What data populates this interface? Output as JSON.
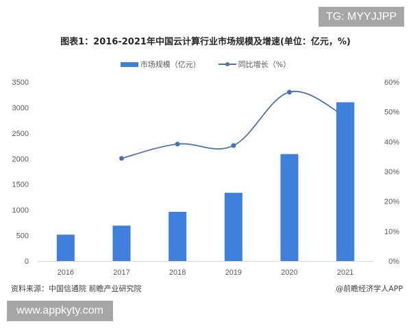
{
  "badges": {
    "top_right": "TG: MYYJJPP",
    "bottom_left": "www.appkyty.com"
  },
  "footer": {
    "source": "资料来源：中国信通院 前瞻产业研究院",
    "credit": "@前瞻经济学人APP"
  },
  "colors": {
    "bar": "#3d7fdb",
    "line": "#4a72b5",
    "axis": "#d9d9d9"
  },
  "chart_data": {
    "type": "bar",
    "title": "图表1：2016-2021年中国云计算行业市场规模及增速(单位：亿元，%)",
    "categories": [
      "2016",
      "2017",
      "2018",
      "2019",
      "2020",
      "2021"
    ],
    "series": [
      {
        "name": "市场规模（亿元）",
        "type": "bar",
        "axis": "left",
        "values": [
          516,
          692,
          962,
          1334,
          2091,
          3102
        ]
      },
      {
        "name": "同比增长（%）",
        "type": "line",
        "axis": "right",
        "values": [
          null,
          34.4,
          39.2,
          38.7,
          56.6,
          48.4
        ]
      }
    ],
    "legend": [
      "市场规模（亿元）",
      "同比增长（%）"
    ],
    "legend_position": "top",
    "ylim_left": [
      0,
      3500
    ],
    "yticks_left": [
      "0",
      "500",
      "1000",
      "1500",
      "2000",
      "2500",
      "3000",
      "3500"
    ],
    "ylim_right": [
      0,
      60
    ],
    "yticks_right": [
      "0%",
      "10%",
      "20%",
      "30%",
      "40%",
      "50%",
      "60%"
    ],
    "xlabel": "",
    "ylabel": "",
    "grid": false
  }
}
